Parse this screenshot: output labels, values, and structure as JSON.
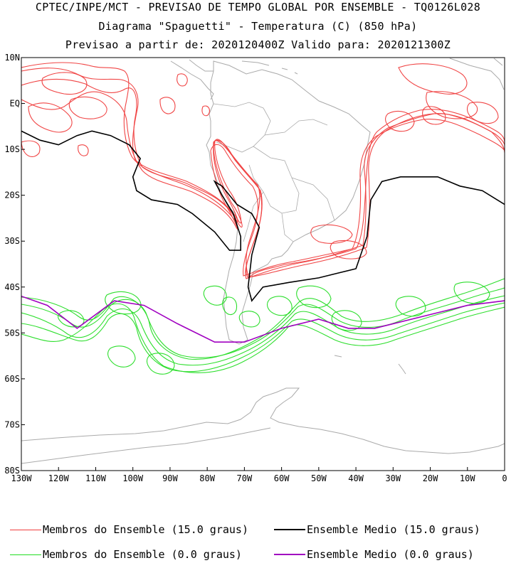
{
  "header": {
    "line1": "CPTEC/INPE/MCT - PREVISAO DE TEMPO GLOBAL POR ENSEMBLE - TQ0126L028",
    "line2": "Diagrama \"Spaguetti\" - Temperatura (C) (850 hPa)",
    "line3": "Previsao a partir de: 2020120400Z  Valido para: 2020121300Z"
  },
  "axes": {
    "lat_labels": [
      "10N",
      "EQ",
      "10S",
      "20S",
      "30S",
      "40S",
      "50S",
      "60S",
      "70S",
      "80S"
    ],
    "lat_values": [
      10,
      0,
      -10,
      -20,
      -30,
      -40,
      -50,
      -60,
      -70,
      -80
    ],
    "lon_labels": [
      "130W",
      "120W",
      "110W",
      "100W",
      "90W",
      "80W",
      "70W",
      "60W",
      "50W",
      "40W",
      "30W",
      "20W",
      "10W",
      "0"
    ],
    "lon_values": [
      -130,
      -120,
      -110,
      -100,
      -90,
      -80,
      -70,
      -60,
      -50,
      -40,
      -30,
      -20,
      -10,
      0
    ]
  },
  "legend": {
    "red_members": "Membros do Ensemble (15.0 graus)",
    "black_mean": "Ensemble Medio (15.0 graus)",
    "green_members": "Membros do Ensemble (0.0 graus)",
    "purple_mean": "Ensemble Medio (0.0 graus)"
  },
  "colors": {
    "members_15": "#f03c3c",
    "mean_15": "#000000",
    "members_0": "#22dd22",
    "mean_0": "#a000c0",
    "coast": "#aaaaaa"
  },
  "map_data": {
    "extent": {
      "lon_min": -130,
      "lon_max": 0,
      "lat_min": -80,
      "lat_max": 10
    },
    "mean_15_lonlat": [
      [
        -130,
        -6
      ],
      [
        -125,
        -8
      ],
      [
        -120,
        -9
      ],
      [
        -115,
        -7
      ],
      [
        -111,
        -6
      ],
      [
        -106,
        -7
      ],
      [
        -101,
        -9
      ],
      [
        -98,
        -12
      ],
      [
        -100,
        -16
      ],
      [
        -99,
        -19
      ],
      [
        -95,
        -21
      ],
      [
        -88,
        -22
      ],
      [
        -84,
        -24
      ],
      [
        -78,
        -28
      ],
      [
        -74,
        -32
      ],
      [
        -71,
        -32
      ],
      [
        -71,
        -29
      ],
      [
        -73,
        -24
      ],
      [
        -76,
        -20
      ],
      [
        -78,
        -17
      ],
      [
        -76,
        -18
      ],
      [
        -72,
        -22
      ],
      [
        -68,
        -24
      ],
      [
        -66,
        -27
      ],
      [
        -68,
        -33
      ],
      [
        -69,
        -40
      ],
      [
        -68,
        -43
      ],
      [
        -65,
        -40
      ],
      [
        -58,
        -39
      ],
      [
        -50,
        -38
      ],
      [
        -45,
        -37
      ],
      [
        -40,
        -36
      ],
      [
        -37,
        -29
      ],
      [
        -36,
        -21
      ],
      [
        -33,
        -17
      ],
      [
        -28,
        -16
      ],
      [
        -24,
        -16
      ],
      [
        -18,
        -16
      ],
      [
        -12,
        -18
      ],
      [
        -6,
        -19
      ],
      [
        0,
        -22
      ]
    ],
    "mean_0_lonlat": [
      [
        -130,
        -42
      ],
      [
        -123,
        -44
      ],
      [
        -115,
        -49
      ],
      [
        -105,
        -43
      ],
      [
        -97,
        -44
      ],
      [
        -88,
        -48
      ],
      [
        -78,
        -52
      ],
      [
        -70,
        -52
      ],
      [
        -60,
        -49
      ],
      [
        -50,
        -47
      ],
      [
        -42,
        -49
      ],
      [
        -35,
        -49
      ],
      [
        -20,
        -46
      ],
      [
        -10,
        -44
      ],
      [
        0,
        -43
      ]
    ]
  }
}
